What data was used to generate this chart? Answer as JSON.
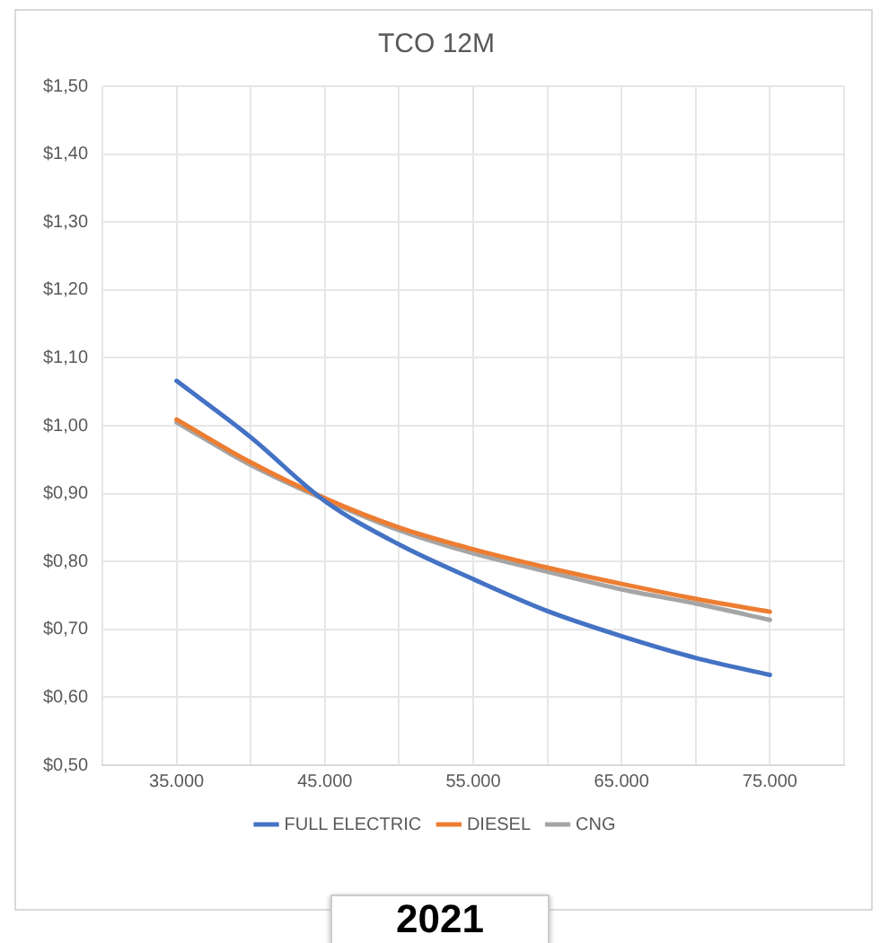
{
  "chart_data": {
    "type": "line",
    "title": "TCO 12M",
    "x": [
      35000,
      40000,
      45000,
      50000,
      55000,
      60000,
      65000,
      70000,
      75000
    ],
    "series": [
      {
        "name": "FULL ELECTRIC",
        "color": "#4472c4",
        "values": [
          1.066,
          0.983,
          0.889,
          0.825,
          0.774,
          0.727,
          0.69,
          0.658,
          0.633
        ]
      },
      {
        "name": "DIESEL",
        "color": "#ed7d31",
        "values": [
          1.009,
          0.946,
          0.893,
          0.85,
          0.818,
          0.791,
          0.767,
          0.745,
          0.726
        ]
      },
      {
        "name": "CNG",
        "color": "#a5a5a5",
        "values": [
          1.005,
          0.942,
          0.891,
          0.846,
          0.812,
          0.785,
          0.759,
          0.738,
          0.714
        ]
      }
    ],
    "xlim": [
      30000,
      80000
    ],
    "xticks": [
      {
        "value": 30000,
        "label": null
      },
      {
        "value": 35000,
        "label": "35.000"
      },
      {
        "value": 40000,
        "label": null
      },
      {
        "value": 45000,
        "label": "45.000"
      },
      {
        "value": 50000,
        "label": null
      },
      {
        "value": 55000,
        "label": "55.000"
      },
      {
        "value": 60000,
        "label": null
      },
      {
        "value": 65000,
        "label": "65.000"
      },
      {
        "value": 70000,
        "label": null
      },
      {
        "value": 75000,
        "label": "75.000"
      },
      {
        "value": 80000,
        "label": null
      }
    ],
    "ylim": [
      0.5,
      1.5
    ],
    "yticks": [
      {
        "value": 0.5,
        "label": "$0,50"
      },
      {
        "value": 0.6,
        "label": "$0,60"
      },
      {
        "value": 0.7,
        "label": "$0,70"
      },
      {
        "value": 0.8,
        "label": "$0,80"
      },
      {
        "value": 0.9,
        "label": "$0,90"
      },
      {
        "value": 1.0,
        "label": "$1,00"
      },
      {
        "value": 1.1,
        "label": "$1,10"
      },
      {
        "value": 1.2,
        "label": "$1,20"
      },
      {
        "value": 1.3,
        "label": "$1,30"
      },
      {
        "value": 1.4,
        "label": "$1,40"
      },
      {
        "value": 1.5,
        "label": "$1,50"
      }
    ],
    "grid": true,
    "legend": "bottom",
    "marker": "none",
    "line_style": "solid",
    "annotations": [
      "2021"
    ]
  }
}
